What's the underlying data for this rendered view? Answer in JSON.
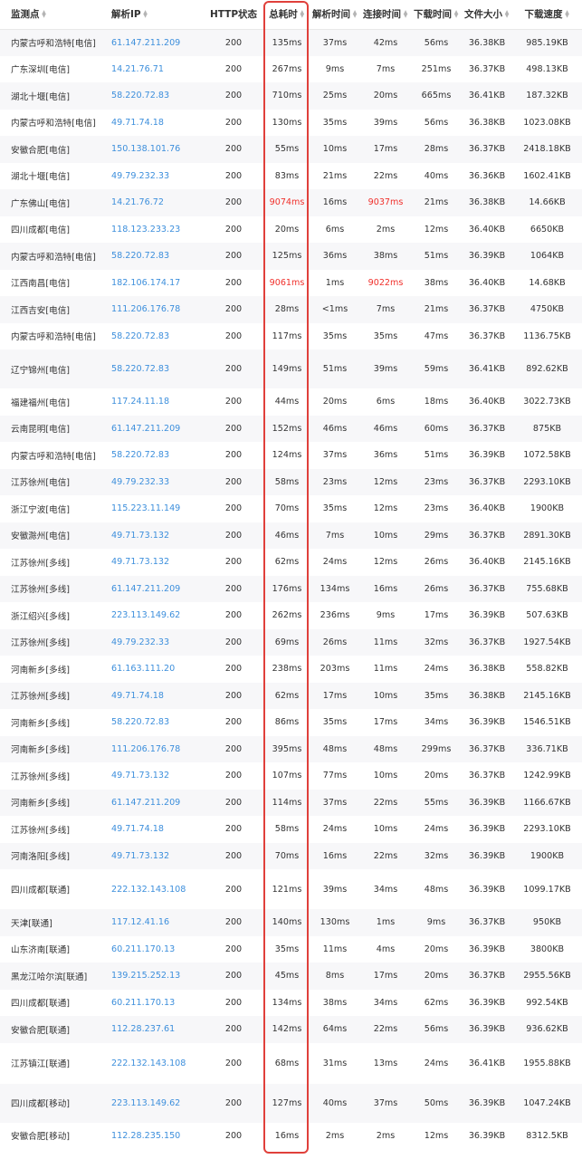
{
  "header": {
    "location": "监测点",
    "ip": "解析IP",
    "http": "HTTP状态",
    "total": "总耗时",
    "dns": "解析时间",
    "connect": "连接时间",
    "download": "下载时间",
    "size": "文件大小",
    "speed": "下载速度"
  },
  "colors": {
    "link": "#3d8fdc",
    "slow": "#f0302b",
    "highlight": "#e0403b"
  },
  "rows": [
    {
      "location": "内蒙古呼和浩特[电信]",
      "ip": "61.147.211.209",
      "status": "200",
      "total": "135ms",
      "dns": "37ms",
      "connect": "42ms",
      "download": "56ms",
      "size": "36.38KB",
      "speed": "985.19KB"
    },
    {
      "location": "广东深圳[电信]",
      "ip": "14.21.76.71",
      "status": "200",
      "total": "267ms",
      "dns": "9ms",
      "connect": "7ms",
      "download": "251ms",
      "size": "36.37KB",
      "speed": "498.13KB"
    },
    {
      "location": "湖北十堰[电信]",
      "ip": "58.220.72.83",
      "status": "200",
      "total": "710ms",
      "dns": "25ms",
      "connect": "20ms",
      "download": "665ms",
      "size": "36.41KB",
      "speed": "187.32KB"
    },
    {
      "location": "内蒙古呼和浩特[电信]",
      "ip": "49.71.74.18",
      "status": "200",
      "total": "130ms",
      "dns": "35ms",
      "connect": "39ms",
      "download": "56ms",
      "size": "36.38KB",
      "speed": "1023.08KB"
    },
    {
      "location": "安徽合肥[电信]",
      "ip": "150.138.101.76",
      "status": "200",
      "total": "55ms",
      "dns": "10ms",
      "connect": "17ms",
      "download": "28ms",
      "size": "36.37KB",
      "speed": "2418.18KB"
    },
    {
      "location": "湖北十堰[电信]",
      "ip": "49.79.232.33",
      "status": "200",
      "total": "83ms",
      "dns": "21ms",
      "connect": "22ms",
      "download": "40ms",
      "size": "36.36KB",
      "speed": "1602.41KB"
    },
    {
      "location": "广东佛山[电信]",
      "ip": "14.21.76.72",
      "status": "200",
      "total": "9074ms",
      "dns": "16ms",
      "connect": "9037ms",
      "download": "21ms",
      "size": "36.38KB",
      "speed": "14.66KB"
    },
    {
      "location": "四川成都[电信]",
      "ip": "118.123.233.23",
      "status": "200",
      "total": "20ms",
      "dns": "6ms",
      "connect": "2ms",
      "download": "12ms",
      "size": "36.40KB",
      "speed": "6650KB"
    },
    {
      "location": "内蒙古呼和浩特[电信]",
      "ip": "58.220.72.83",
      "status": "200",
      "total": "125ms",
      "dns": "36ms",
      "connect": "38ms",
      "download": "51ms",
      "size": "36.39KB",
      "speed": "1064KB"
    },
    {
      "location": "江西南昌[电信]",
      "ip": "182.106.174.17",
      "status": "200",
      "total": "9061ms",
      "dns": "1ms",
      "connect": "9022ms",
      "download": "38ms",
      "size": "36.40KB",
      "speed": "14.68KB"
    },
    {
      "location": "江西吉安[电信]",
      "ip": "111.206.176.78",
      "status": "200",
      "total": "28ms",
      "dns": "<1ms",
      "connect": "7ms",
      "download": "21ms",
      "size": "36.37KB",
      "speed": "4750KB"
    },
    {
      "location": "内蒙古呼和浩特[电信]",
      "ip": "58.220.72.83",
      "status": "200",
      "total": "117ms",
      "dns": "35ms",
      "connect": "35ms",
      "download": "47ms",
      "size": "36.37KB",
      "speed": "1136.75KB"
    },
    {
      "location": "辽宁锦州[电信]",
      "ip": "58.220.72.83",
      "status": "200",
      "total": "149ms",
      "dns": "51ms",
      "connect": "39ms",
      "download": "59ms",
      "size": "36.41KB",
      "speed": "892.62KB"
    },
    {
      "location": "福建福州[电信]",
      "ip": "117.24.11.18",
      "status": "200",
      "total": "44ms",
      "dns": "20ms",
      "connect": "6ms",
      "download": "18ms",
      "size": "36.40KB",
      "speed": "3022.73KB"
    },
    {
      "location": "云南昆明[电信]",
      "ip": "61.147.211.209",
      "status": "200",
      "total": "152ms",
      "dns": "46ms",
      "connect": "46ms",
      "download": "60ms",
      "size": "36.37KB",
      "speed": "875KB"
    },
    {
      "location": "内蒙古呼和浩特[电信]",
      "ip": "58.220.72.83",
      "status": "200",
      "total": "124ms",
      "dns": "37ms",
      "connect": "36ms",
      "download": "51ms",
      "size": "36.39KB",
      "speed": "1072.58KB"
    },
    {
      "location": "江苏徐州[电信]",
      "ip": "49.79.232.33",
      "status": "200",
      "total": "58ms",
      "dns": "23ms",
      "connect": "12ms",
      "download": "23ms",
      "size": "36.37KB",
      "speed": "2293.10KB"
    },
    {
      "location": "浙江宁波[电信]",
      "ip": "115.223.11.149",
      "status": "200",
      "total": "70ms",
      "dns": "35ms",
      "connect": "12ms",
      "download": "23ms",
      "size": "36.40KB",
      "speed": "1900KB"
    },
    {
      "location": "安徽滁州[电信]",
      "ip": "49.71.73.132",
      "status": "200",
      "total": "46ms",
      "dns": "7ms",
      "connect": "10ms",
      "download": "29ms",
      "size": "36.37KB",
      "speed": "2891.30KB"
    },
    {
      "location": "江苏徐州[多线]",
      "ip": "49.71.73.132",
      "status": "200",
      "total": "62ms",
      "dns": "24ms",
      "connect": "12ms",
      "download": "26ms",
      "size": "36.40KB",
      "speed": "2145.16KB"
    },
    {
      "location": "江苏徐州[多线]",
      "ip": "61.147.211.209",
      "status": "200",
      "total": "176ms",
      "dns": "134ms",
      "connect": "16ms",
      "download": "26ms",
      "size": "36.37KB",
      "speed": "755.68KB"
    },
    {
      "location": "浙江绍兴[多线]",
      "ip": "223.113.149.62",
      "status": "200",
      "total": "262ms",
      "dns": "236ms",
      "connect": "9ms",
      "download": "17ms",
      "size": "36.39KB",
      "speed": "507.63KB"
    },
    {
      "location": "江苏徐州[多线]",
      "ip": "49.79.232.33",
      "status": "200",
      "total": "69ms",
      "dns": "26ms",
      "connect": "11ms",
      "download": "32ms",
      "size": "36.37KB",
      "speed": "1927.54KB"
    },
    {
      "location": "河南新乡[多线]",
      "ip": "61.163.111.20",
      "status": "200",
      "total": "238ms",
      "dns": "203ms",
      "connect": "11ms",
      "download": "24ms",
      "size": "36.38KB",
      "speed": "558.82KB"
    },
    {
      "location": "江苏徐州[多线]",
      "ip": "49.71.74.18",
      "status": "200",
      "total": "62ms",
      "dns": "17ms",
      "connect": "10ms",
      "download": "35ms",
      "size": "36.38KB",
      "speed": "2145.16KB"
    },
    {
      "location": "河南新乡[多线]",
      "ip": "58.220.72.83",
      "status": "200",
      "total": "86ms",
      "dns": "35ms",
      "connect": "17ms",
      "download": "34ms",
      "size": "36.39KB",
      "speed": "1546.51KB"
    },
    {
      "location": "河南新乡[多线]",
      "ip": "111.206.176.78",
      "status": "200",
      "total": "395ms",
      "dns": "48ms",
      "connect": "48ms",
      "download": "299ms",
      "size": "36.37KB",
      "speed": "336.71KB"
    },
    {
      "location": "江苏徐州[多线]",
      "ip": "49.71.73.132",
      "status": "200",
      "total": "107ms",
      "dns": "77ms",
      "connect": "10ms",
      "download": "20ms",
      "size": "36.37KB",
      "speed": "1242.99KB"
    },
    {
      "location": "河南新乡[多线]",
      "ip": "61.147.211.209",
      "status": "200",
      "total": "114ms",
      "dns": "37ms",
      "connect": "22ms",
      "download": "55ms",
      "size": "36.39KB",
      "speed": "1166.67KB"
    },
    {
      "location": "江苏徐州[多线]",
      "ip": "49.71.74.18",
      "status": "200",
      "total": "58ms",
      "dns": "24ms",
      "connect": "10ms",
      "download": "24ms",
      "size": "36.39KB",
      "speed": "2293.10KB"
    },
    {
      "location": "河南洛阳[多线]",
      "ip": "49.71.73.132",
      "status": "200",
      "total": "70ms",
      "dns": "16ms",
      "connect": "22ms",
      "download": "32ms",
      "size": "36.39KB",
      "speed": "1900KB"
    },
    {
      "location": "四川成都[联通]",
      "ip": "222.132.143.108",
      "status": "200",
      "total": "121ms",
      "dns": "39ms",
      "connect": "34ms",
      "download": "48ms",
      "size": "36.39KB",
      "speed": "1099.17KB"
    },
    {
      "location": "天津[联通]",
      "ip": "117.12.41.16",
      "status": "200",
      "total": "140ms",
      "dns": "130ms",
      "connect": "1ms",
      "download": "9ms",
      "size": "36.37KB",
      "speed": "950KB"
    },
    {
      "location": "山东济南[联通]",
      "ip": "60.211.170.13",
      "status": "200",
      "total": "35ms",
      "dns": "11ms",
      "connect": "4ms",
      "download": "20ms",
      "size": "36.39KB",
      "speed": "3800KB"
    },
    {
      "location": "黑龙江哈尔滨[联通]",
      "ip": "139.215.252.13",
      "status": "200",
      "total": "45ms",
      "dns": "8ms",
      "connect": "17ms",
      "download": "20ms",
      "size": "36.37KB",
      "speed": "2955.56KB"
    },
    {
      "location": "四川成都[联通]",
      "ip": "60.211.170.13",
      "status": "200",
      "total": "134ms",
      "dns": "38ms",
      "connect": "34ms",
      "download": "62ms",
      "size": "36.39KB",
      "speed": "992.54KB"
    },
    {
      "location": "安徽合肥[联通]",
      "ip": "112.28.237.61",
      "status": "200",
      "total": "142ms",
      "dns": "64ms",
      "connect": "22ms",
      "download": "56ms",
      "size": "36.39KB",
      "speed": "936.62KB"
    },
    {
      "location": "江苏镇江[联通]",
      "ip": "222.132.143.108",
      "status": "200",
      "total": "68ms",
      "dns": "31ms",
      "connect": "13ms",
      "download": "24ms",
      "size": "36.41KB",
      "speed": "1955.88KB"
    },
    {
      "location": "四川成都[移动]",
      "ip": "223.113.149.62",
      "status": "200",
      "total": "127ms",
      "dns": "40ms",
      "connect": "37ms",
      "download": "50ms",
      "size": "36.39KB",
      "speed": "1047.24KB"
    },
    {
      "location": "安徽合肥[移动]",
      "ip": "112.28.235.150",
      "status": "200",
      "total": "16ms",
      "dns": "2ms",
      "connect": "2ms",
      "download": "12ms",
      "size": "36.39KB",
      "speed": "8312.5KB"
    }
  ]
}
